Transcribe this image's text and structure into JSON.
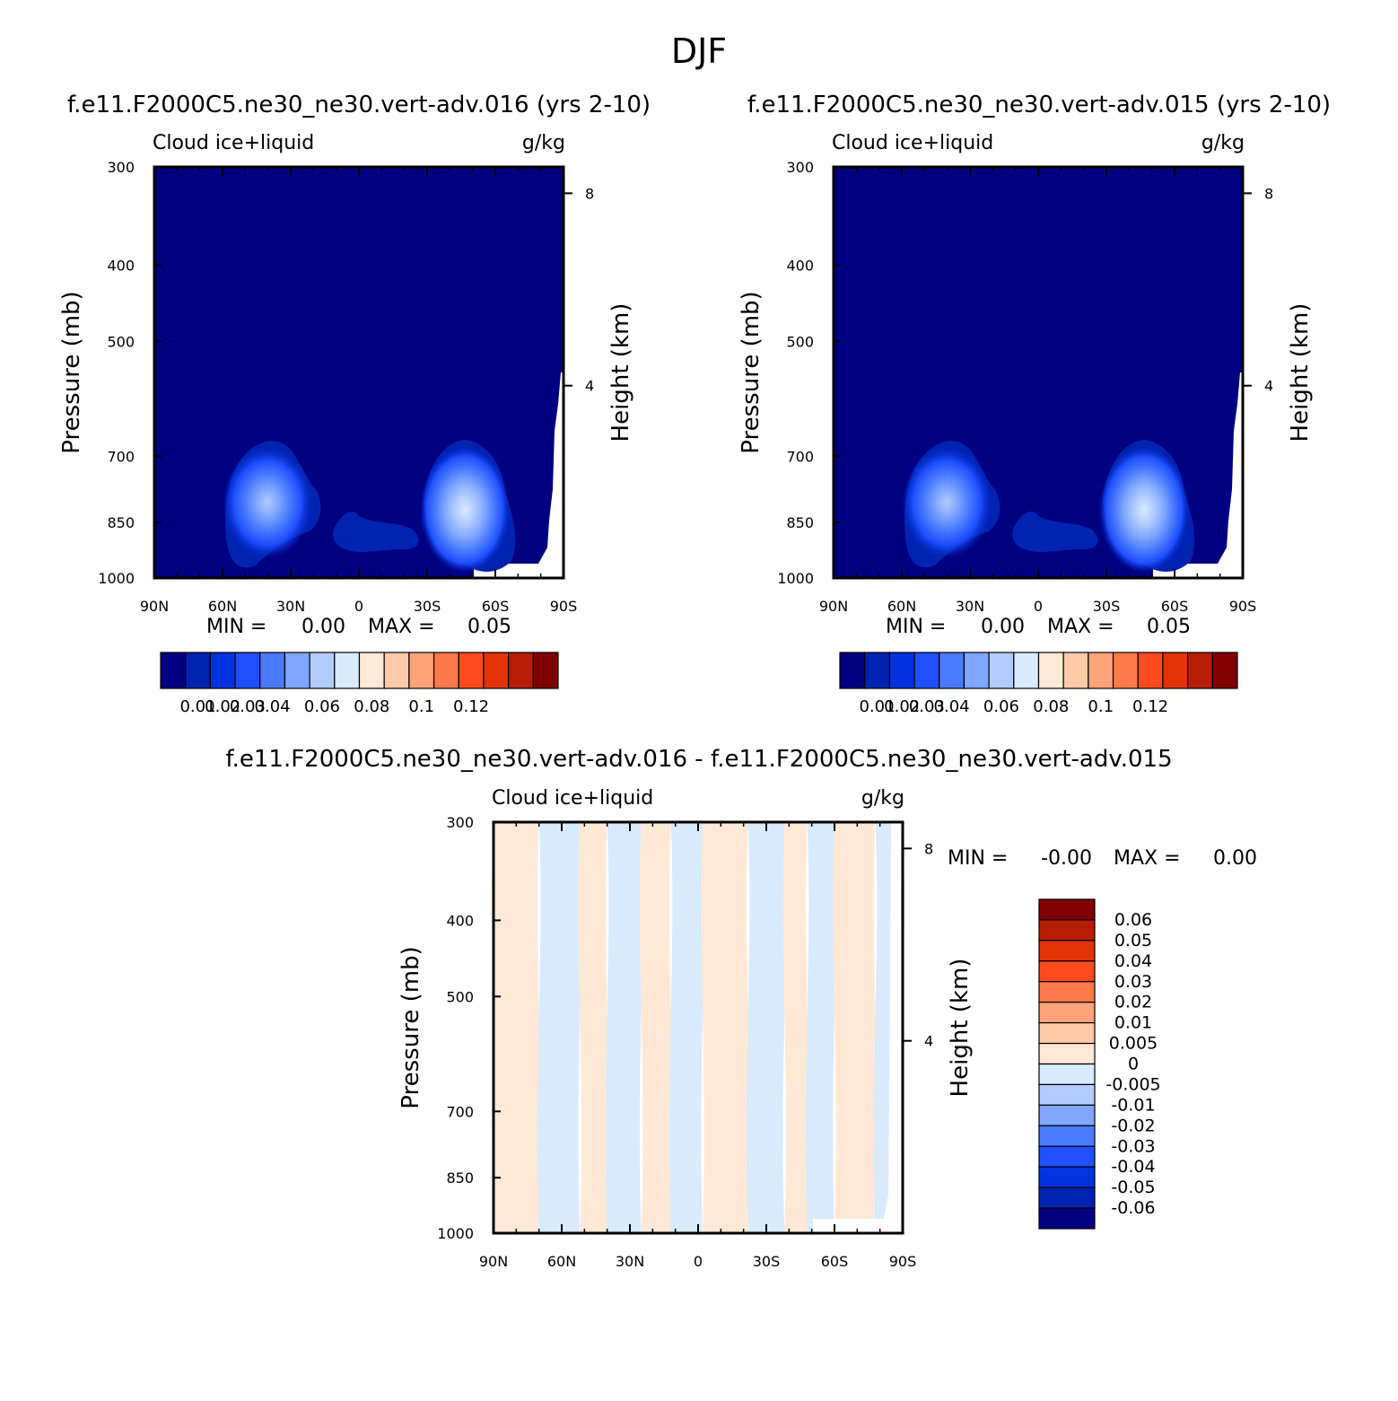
{
  "page_title": "DJF",
  "colors": {
    "abs_scale": [
      "#000080",
      "#0022b0",
      "#0033dd",
      "#1f4fff",
      "#4a7bff",
      "#7fa7ff",
      "#b3ccff",
      "#d9ebff",
      "#ffe9d6",
      "#ffcaa8",
      "#ffa37a",
      "#ff7a4a",
      "#ff4a1f",
      "#e23305",
      "#b51e05",
      "#800000"
    ],
    "diff_scale": [
      "#000080",
      "#0022b0",
      "#0033dd",
      "#1f4fff",
      "#4a7bff",
      "#7fa7ff",
      "#b3ccff",
      "#d9ebff",
      "#ffe9d6",
      "#ffcaa8",
      "#ffa37a",
      "#ff7a4a",
      "#ff4a1f",
      "#e23305",
      "#b51e05",
      "#800000"
    ]
  },
  "chart_data": [
    {
      "type": "heatmap",
      "title": "f.e11.F2000C5.ne30_ne30.vert-adv.016 (yrs 2-10)",
      "left_label": "Cloud ice+liquid",
      "right_label": "g/kg",
      "ylabel": "Pressure (mb)",
      "ylabel_right": "Height (km)",
      "x_ticks": [
        "90N",
        "60N",
        "30N",
        "0",
        "30S",
        "60S",
        "90S"
      ],
      "xlim": [
        90,
        -90
      ],
      "y_ticks": [
        "300",
        "400",
        "500",
        "700",
        "850",
        "1000"
      ],
      "ylim": [
        1000,
        300
      ],
      "y_scale": "log",
      "y2_ticks": [
        "8",
        "4"
      ],
      "min_text": "MIN =",
      "min_value": "0.00",
      "max_text": "MAX =",
      "max_value": "0.05",
      "colorbar_labels": [
        "0.01",
        "0.02",
        "0.03",
        "0.04",
        "0.06",
        "0.08",
        "0.1",
        "0.12"
      ],
      "legend": "bottom",
      "features": [
        {
          "lat": 40,
          "p": 870,
          "peak": 0.035
        },
        {
          "lat": -45,
          "p": 880,
          "peak": 0.05
        }
      ]
    },
    {
      "type": "heatmap",
      "title": "f.e11.F2000C5.ne30_ne30.vert-adv.015 (yrs 2-10)",
      "left_label": "Cloud ice+liquid",
      "right_label": "g/kg",
      "ylabel": "Pressure (mb)",
      "ylabel_right": "Height (km)",
      "x_ticks": [
        "90N",
        "60N",
        "30N",
        "0",
        "30S",
        "60S",
        "90S"
      ],
      "xlim": [
        90,
        -90
      ],
      "y_ticks": [
        "300",
        "400",
        "500",
        "700",
        "850",
        "1000"
      ],
      "ylim": [
        1000,
        300
      ],
      "y_scale": "log",
      "y2_ticks": [
        "8",
        "4"
      ],
      "min_text": "MIN =",
      "min_value": "0.00",
      "max_text": "MAX =",
      "max_value": "0.05",
      "colorbar_labels": [
        "0.01",
        "0.02",
        "0.03",
        "0.04",
        "0.06",
        "0.08",
        "0.1",
        "0.12"
      ],
      "legend": "bottom",
      "features": [
        {
          "lat": 40,
          "p": 870,
          "peak": 0.035
        },
        {
          "lat": -45,
          "p": 880,
          "peak": 0.05
        }
      ]
    },
    {
      "type": "heatmap",
      "title": "f.e11.F2000C5.ne30_ne30.vert-adv.016 - f.e11.F2000C5.ne30_ne30.vert-adv.015",
      "left_label": "Cloud ice+liquid",
      "right_label": "g/kg",
      "ylabel": "Pressure (mb)",
      "ylabel_right": "Height (km)",
      "x_ticks": [
        "90N",
        "60N",
        "30N",
        "0",
        "30S",
        "60S",
        "90S"
      ],
      "xlim": [
        90,
        -90
      ],
      "y_ticks": [
        "300",
        "400",
        "500",
        "700",
        "850",
        "1000"
      ],
      "ylim": [
        1000,
        300
      ],
      "y_scale": "log",
      "y2_ticks": [
        "8",
        "4"
      ],
      "min_text": "MIN =",
      "min_value": "-0.00",
      "max_text": "MAX =",
      "max_value": "0.00",
      "colorbar_labels": [
        "0.06",
        "0.05",
        "0.04",
        "0.03",
        "0.02",
        "0.01",
        "0.005",
        "0",
        "-0.005",
        "-0.01",
        "-0.02",
        "-0.03",
        "-0.04",
        "-0.05",
        "-0.06"
      ],
      "legend": "right",
      "bands": [
        {
          "from": 90,
          "to": 70,
          "sign": "pos"
        },
        {
          "from": 70,
          "to": 52,
          "sign": "neg"
        },
        {
          "from": 52,
          "to": 40,
          "sign": "pos"
        },
        {
          "from": 40,
          "to": 25,
          "sign": "neg"
        },
        {
          "from": 25,
          "to": 12,
          "sign": "pos"
        },
        {
          "from": 12,
          "to": -2,
          "sign": "neg"
        },
        {
          "from": -2,
          "to": -22,
          "sign": "pos"
        },
        {
          "from": -22,
          "to": -38,
          "sign": "neg"
        },
        {
          "from": -38,
          "to": -48,
          "sign": "pos"
        },
        {
          "from": -48,
          "to": -60,
          "sign": "neg"
        },
        {
          "from": -60,
          "to": -78,
          "sign": "pos"
        },
        {
          "from": -78,
          "to": -90,
          "sign": "neg"
        }
      ]
    }
  ]
}
